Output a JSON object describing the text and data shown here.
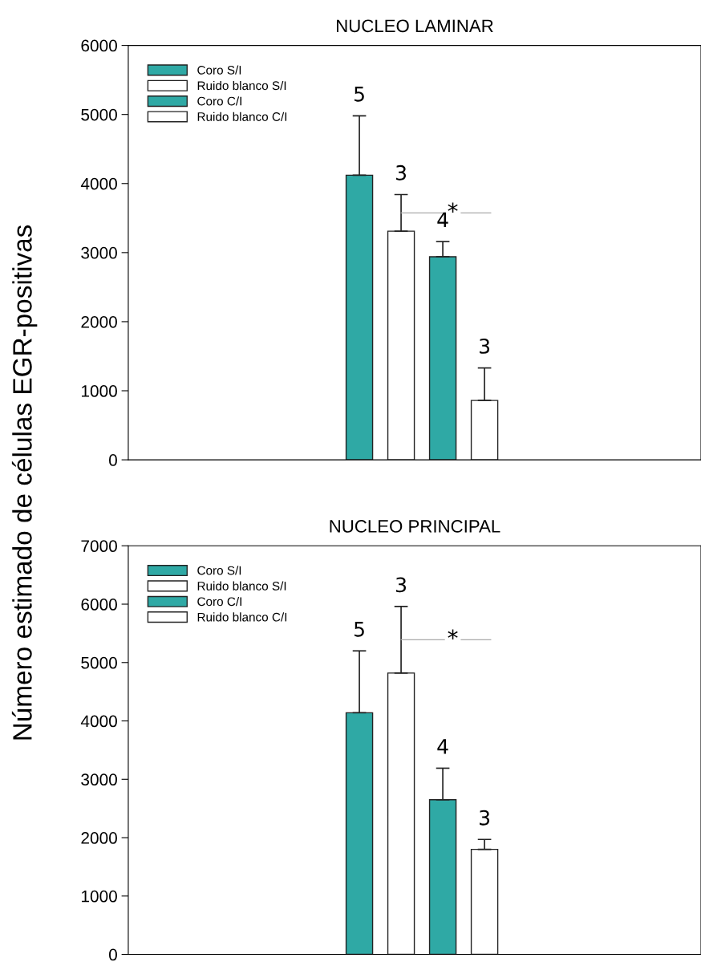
{
  "chart_data": [
    {
      "type": "bar",
      "title": "NUCLEO LAMINAR",
      "ylabel": "Número estimado de células EGR-positivas",
      "categories": [
        null
      ],
      "ylim": [
        0,
        6000
      ],
      "yticks": [
        0,
        1000,
        2000,
        3000,
        4000,
        5000,
        6000
      ],
      "grid": false,
      "legend": "top left",
      "series": [
        {
          "name": "Coro S/I",
          "color": "#2fa9a5",
          "values": [
            4120
          ],
          "errors": [
            [
              4120,
              4980
            ]
          ]
        },
        {
          "name": "Ruido blanco S/I",
          "color": "#ffffff",
          "values": [
            3310
          ],
          "errors": [
            [
              3310,
              3840
            ]
          ]
        },
        {
          "name": "Coro C/I",
          "color": "#2fa9a5",
          "values": [
            2940
          ],
          "errors": [
            [
              2940,
              3160
            ]
          ]
        },
        {
          "name": "Ruido blanco C/I",
          "color": "#ffffff",
          "values": [
            860
          ],
          "errors": [
            [
              860,
              1330
            ]
          ]
        }
      ],
      "annotations": [
        "5",
        "3",
        "4",
        "3",
        "*"
      ]
    },
    {
      "type": "bar",
      "title": "NUCLEO PRINCIPAL",
      "categories": [
        null
      ],
      "ylim": [
        0,
        7000
      ],
      "yticks": [
        0,
        1000,
        2000,
        3000,
        4000,
        5000,
        6000,
        7000
      ],
      "grid": false,
      "legend": "top left",
      "series": [
        {
          "name": "Coro S/I",
          "color": "#2fa9a5",
          "values": [
            4140
          ],
          "errors": [
            [
              4140,
              5200
            ]
          ]
        },
        {
          "name": "Ruido blanco S/I",
          "color": "#ffffff",
          "values": [
            4820
          ],
          "errors": [
            [
              4820,
              5960
            ]
          ]
        },
        {
          "name": "Coro C/I",
          "color": "#2fa9a5",
          "values": [
            2650
          ],
          "errors": [
            [
              2650,
              3190
            ]
          ]
        },
        {
          "name": "Ruido blanco C/I",
          "color": "#ffffff",
          "values": [
            1800
          ],
          "errors": [
            [
              1800,
              1970
            ]
          ]
        }
      ],
      "annotations": [
        "5",
        "3",
        "4",
        "3",
        "*"
      ]
    }
  ]
}
